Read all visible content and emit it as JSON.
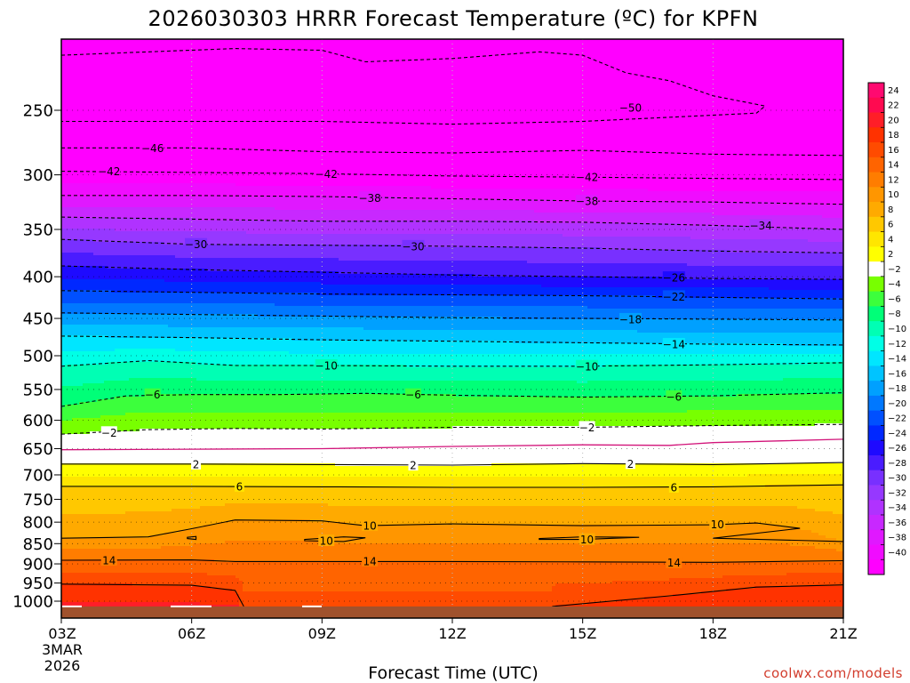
{
  "title": "2026030303 HRRR Forecast Temperature (ºC) for KPFN",
  "credit": "coolwx.com/models",
  "chart_data": {
    "type": "heatmap",
    "subtype": "filled-contour time-pressure cross section",
    "title": "2026030303 HRRR Forecast Temperature (ºC) for KPFN",
    "xlabel": "Forecast Time (UTC)",
    "ylabel": "",
    "units": "ºC",
    "x_ticks": [
      "03Z",
      "06Z",
      "09Z",
      "12Z",
      "15Z",
      "18Z",
      "21Z"
    ],
    "x_hours": [
      3,
      6,
      9,
      12,
      15,
      18,
      21
    ],
    "x_first_tick_extra": [
      "3MAR",
      "2026"
    ],
    "xlim": [
      3,
      21
    ],
    "y_ticks": [
      250,
      300,
      350,
      400,
      450,
      500,
      550,
      600,
      650,
      700,
      750,
      800,
      850,
      900,
      950,
      1000
    ],
    "ylim": [
      1030,
      200
    ],
    "surface_pressure_hPa": 1015,
    "colorbar_ticks": [
      24,
      22,
      20,
      18,
      16,
      14,
      12,
      10,
      8,
      6,
      4,
      2,
      -2,
      -4,
      -6,
      -8,
      -10,
      -12,
      -14,
      -16,
      -18,
      -20,
      -22,
      -24,
      -26,
      -28,
      -30,
      -32,
      -34,
      -36,
      -38,
      -40
    ],
    "bands": [
      {
        "min": -99,
        "max": -40,
        "color": "#ff00ff"
      },
      {
        "min": -40,
        "max": -38,
        "color": "#f00cff"
      },
      {
        "min": -38,
        "max": -36,
        "color": "#e018ff"
      },
      {
        "min": -36,
        "max": -34,
        "color": "#c828ff"
      },
      {
        "min": -34,
        "max": -32,
        "color": "#b032ff"
      },
      {
        "min": -32,
        "max": -30,
        "color": "#9638ff"
      },
      {
        "min": -30,
        "max": -28,
        "color": "#7830ff"
      },
      {
        "min": -28,
        "max": -26,
        "color": "#4a1cff"
      },
      {
        "min": -26,
        "max": -24,
        "color": "#1e0aff"
      },
      {
        "min": -24,
        "max": -22,
        "color": "#0028ff"
      },
      {
        "min": -22,
        "max": -20,
        "color": "#0050ff"
      },
      {
        "min": -20,
        "max": -18,
        "color": "#0078ff"
      },
      {
        "min": -18,
        "max": -16,
        "color": "#00a0ff"
      },
      {
        "min": -16,
        "max": -14,
        "color": "#00c4ff"
      },
      {
        "min": -14,
        "max": -12,
        "color": "#00e6ff"
      },
      {
        "min": -12,
        "max": -10,
        "color": "#00ffe6"
      },
      {
        "min": -10,
        "max": -8,
        "color": "#00ffb4"
      },
      {
        "min": -8,
        "max": -6,
        "color": "#00ff78"
      },
      {
        "min": -6,
        "max": -4,
        "color": "#3cff3c"
      },
      {
        "min": -4,
        "max": -2,
        "color": "#78ff00"
      },
      {
        "min": -2,
        "max": 2,
        "color": "#ffffff"
      },
      {
        "min": 2,
        "max": 4,
        "color": "#ffff00"
      },
      {
        "min": 4,
        "max": 6,
        "color": "#ffe600"
      },
      {
        "min": 6,
        "max": 8,
        "color": "#ffc800"
      },
      {
        "min": 8,
        "max": 10,
        "color": "#ffaa00"
      },
      {
        "min": 10,
        "max": 12,
        "color": "#ff9600"
      },
      {
        "min": 12,
        "max": 14,
        "color": "#ff7d00"
      },
      {
        "min": 14,
        "max": 16,
        "color": "#ff6400"
      },
      {
        "min": 16,
        "max": 18,
        "color": "#ff4b00"
      },
      {
        "min": 18,
        "max": 20,
        "color": "#ff3200"
      },
      {
        "min": 20,
        "max": 22,
        "color": "#ff1e28"
      },
      {
        "min": 22,
        "max": 24,
        "color": "#ff0a50"
      },
      {
        "min": 24,
        "max": 99,
        "color": "#ff0a70"
      }
    ],
    "zero_isotherm_color": "#d2147a",
    "ground_color": "#a0522d",
    "contours": [
      {
        "level": -50,
        "style": "dashed",
        "p": [
          [
            3,
            214
          ],
          [
            5,
            212
          ],
          [
            7,
            210
          ],
          [
            9,
            211
          ],
          [
            10,
            218
          ],
          [
            12,
            216
          ],
          [
            14,
            212
          ],
          [
            15,
            214
          ],
          [
            16,
            225
          ],
          [
            17,
            230
          ],
          [
            18,
            240
          ],
          [
            19.2,
            247
          ],
          [
            19,
            252
          ],
          [
            15,
            258
          ],
          [
            12,
            260
          ],
          [
            9,
            258
          ],
          [
            6,
            258
          ],
          [
            3,
            258
          ]
        ],
        "labels": [
          [
            16.1,
            248
          ]
        ]
      },
      {
        "level": -46,
        "style": "dashed",
        "p": [
          [
            3,
            278
          ],
          [
            6,
            278
          ],
          [
            9,
            281
          ],
          [
            12,
            282
          ],
          [
            15,
            280
          ],
          [
            18,
            283
          ],
          [
            21,
            284
          ]
        ],
        "labels": [
          [
            5.1,
            278
          ]
        ]
      },
      {
        "level": -42,
        "style": "dashed",
        "p": [
          [
            3,
            297
          ],
          [
            6,
            298
          ],
          [
            9,
            299
          ],
          [
            12,
            301
          ],
          [
            15,
            302
          ],
          [
            18,
            303
          ],
          [
            21,
            304
          ]
        ],
        "labels": [
          [
            4.1,
            297
          ],
          [
            9.1,
            299
          ],
          [
            15.1,
            302
          ]
        ]
      },
      {
        "level": -38,
        "style": "dashed",
        "p": [
          [
            3,
            318
          ],
          [
            6,
            318
          ],
          [
            9,
            319
          ],
          [
            12,
            321
          ],
          [
            15,
            323
          ],
          [
            18,
            324
          ],
          [
            21,
            326
          ]
        ],
        "labels": [
          [
            10.1,
            320
          ],
          [
            15.1,
            323
          ]
        ]
      },
      {
        "level": -34,
        "style": "dashed",
        "p": [
          [
            3,
            338
          ],
          [
            6,
            340
          ],
          [
            9,
            342
          ],
          [
            12,
            342
          ],
          [
            15,
            343
          ],
          [
            18,
            346
          ],
          [
            21,
            350
          ]
        ],
        "labels": [
          [
            19.1,
            346
          ]
        ]
      },
      {
        "level": -30,
        "style": "dashed",
        "p": [
          [
            3,
            360
          ],
          [
            6,
            365
          ],
          [
            9,
            366
          ],
          [
            12,
            367
          ],
          [
            15,
            369
          ],
          [
            18,
            372
          ],
          [
            21,
            374
          ]
        ],
        "labels": [
          [
            6.1,
            365
          ],
          [
            11.1,
            367
          ]
        ]
      },
      {
        "level": -26,
        "style": "dashed",
        "p": [
          [
            3,
            388
          ],
          [
            6,
            392
          ],
          [
            9,
            395
          ],
          [
            12,
            398
          ],
          [
            15,
            400
          ],
          [
            18,
            402
          ],
          [
            21,
            403
          ]
        ],
        "labels": [
          [
            17.1,
            401
          ]
        ]
      },
      {
        "level": -22,
        "style": "dashed",
        "p": [
          [
            3,
            416
          ],
          [
            6,
            418
          ],
          [
            9,
            420
          ],
          [
            12,
            421
          ],
          [
            15,
            422
          ],
          [
            18,
            424
          ],
          [
            21,
            426
          ]
        ],
        "labels": [
          [
            17.1,
            423
          ]
        ]
      },
      {
        "level": -18,
        "style": "dashed",
        "p": [
          [
            3,
            443
          ],
          [
            6,
            445
          ],
          [
            9,
            447
          ],
          [
            12,
            449
          ],
          [
            15,
            450
          ],
          [
            18,
            451
          ],
          [
            21,
            452
          ]
        ],
        "labels": [
          [
            16.1,
            451
          ]
        ]
      },
      {
        "level": -14,
        "style": "dashed",
        "p": [
          [
            3,
            473
          ],
          [
            6,
            475
          ],
          [
            9,
            478
          ],
          [
            12,
            480
          ],
          [
            15,
            482
          ],
          [
            18,
            484
          ],
          [
            21,
            485
          ]
        ],
        "labels": [
          [
            17.1,
            484
          ]
        ]
      },
      {
        "level": -10,
        "style": "dashed",
        "p": [
          [
            3,
            515
          ],
          [
            5,
            507
          ],
          [
            7,
            514
          ],
          [
            9,
            514
          ],
          [
            12,
            515
          ],
          [
            15,
            515
          ],
          [
            18,
            513
          ],
          [
            21,
            510
          ]
        ],
        "labels": [
          [
            9.1,
            514
          ],
          [
            15.1,
            515
          ]
        ]
      },
      {
        "level": -6,
        "style": "dashed",
        "p": [
          [
            3,
            577
          ],
          [
            4.5,
            560
          ],
          [
            6,
            558
          ],
          [
            8,
            558
          ],
          [
            10,
            556
          ],
          [
            12,
            559
          ],
          [
            15,
            562
          ],
          [
            18,
            560
          ],
          [
            21,
            555
          ]
        ],
        "labels": [
          [
            5.1,
            558
          ],
          [
            11.1,
            558
          ],
          [
            17.1,
            561
          ]
        ]
      },
      {
        "level": -2,
        "style": "dashed",
        "p": [
          [
            3,
            624
          ],
          [
            5,
            616
          ],
          [
            7,
            614
          ],
          [
            9,
            615
          ],
          [
            12,
            612
          ],
          [
            15,
            612
          ],
          [
            18,
            609
          ],
          [
            21,
            607
          ]
        ],
        "labels": [
          [
            4.1,
            621
          ],
          [
            15.1,
            612
          ]
        ]
      },
      {
        "level": 0,
        "style": "zero",
        "p": [
          [
            3,
            652
          ],
          [
            6,
            651
          ],
          [
            9,
            650
          ],
          [
            12,
            646
          ],
          [
            15,
            643
          ],
          [
            17,
            644
          ],
          [
            18,
            639
          ],
          [
            21,
            633
          ]
        ],
        "labels": []
      },
      {
        "level": 2,
        "style": "solid",
        "p": [
          [
            3,
            679
          ],
          [
            6,
            679
          ],
          [
            9,
            680
          ],
          [
            12,
            681
          ],
          [
            15,
            678
          ],
          [
            18,
            680
          ],
          [
            21,
            676
          ]
        ],
        "labels": [
          [
            6.1,
            679
          ],
          [
            11.1,
            681
          ],
          [
            16.1,
            678
          ]
        ]
      },
      {
        "level": 6,
        "style": "solid",
        "p": [
          [
            3,
            723
          ],
          [
            6,
            723
          ],
          [
            9,
            724
          ],
          [
            12,
            725
          ],
          [
            15,
            725
          ],
          [
            18,
            724
          ],
          [
            21,
            720
          ]
        ],
        "labels": [
          [
            7.1,
            723
          ],
          [
            17.1,
            725
          ]
        ]
      },
      {
        "level": 10,
        "style": "solid",
        "p": [
          [
            3,
            837
          ],
          [
            5,
            834
          ],
          [
            6,
            815
          ],
          [
            7,
            795
          ],
          [
            9,
            797
          ],
          [
            10,
            808
          ],
          [
            12,
            804
          ],
          [
            15,
            808
          ],
          [
            18,
            806
          ],
          [
            19,
            802
          ],
          [
            20,
            814
          ],
          [
            18,
            837
          ],
          [
            21,
            845
          ]
        ],
        "labels": [
          [
            10.1,
            808
          ],
          [
            18.1,
            805
          ]
        ]
      },
      {
        "level": 10,
        "style": "solid",
        "closed": true,
        "p": [
          [
            8.6,
            840
          ],
          [
            9.5,
            834
          ],
          [
            10,
            836
          ],
          [
            9.5,
            845
          ],
          [
            8.6,
            843
          ]
        ],
        "labels": [
          [
            9.1,
            843
          ]
        ]
      },
      {
        "level": 10,
        "style": "solid",
        "closed": true,
        "p": [
          [
            14,
            838
          ],
          [
            15,
            834
          ],
          [
            16.3,
            835
          ],
          [
            15,
            840
          ],
          [
            14,
            840
          ]
        ],
        "labels": [
          [
            15.1,
            840
          ]
        ]
      },
      {
        "level": 10,
        "style": "solid",
        "closed": true,
        "p": [
          [
            5.9,
            835
          ],
          [
            6.1,
            833
          ],
          [
            6.1,
            840
          ],
          [
            5.9,
            838
          ]
        ],
        "labels": []
      },
      {
        "level": 14,
        "style": "solid",
        "p": [
          [
            3,
            891
          ],
          [
            6,
            890
          ],
          [
            7,
            894
          ],
          [
            9,
            894
          ],
          [
            12,
            894
          ],
          [
            15,
            895
          ],
          [
            18,
            896
          ],
          [
            21,
            892
          ]
        ],
        "labels": [
          [
            4.1,
            891
          ],
          [
            10.1,
            893
          ],
          [
            17.1,
            897
          ]
        ]
      },
      {
        "level": 18,
        "style": "solid",
        "p": [
          [
            3,
            953
          ],
          [
            6,
            956
          ],
          [
            7,
            970
          ],
          [
            7.2,
            1015
          ]
        ],
        "labels": []
      },
      {
        "level": 18,
        "style": "solid",
        "p": [
          [
            14.3,
            1015
          ],
          [
            17,
            985
          ],
          [
            19,
            961
          ],
          [
            21,
            955
          ]
        ],
        "labels": []
      }
    ]
  }
}
